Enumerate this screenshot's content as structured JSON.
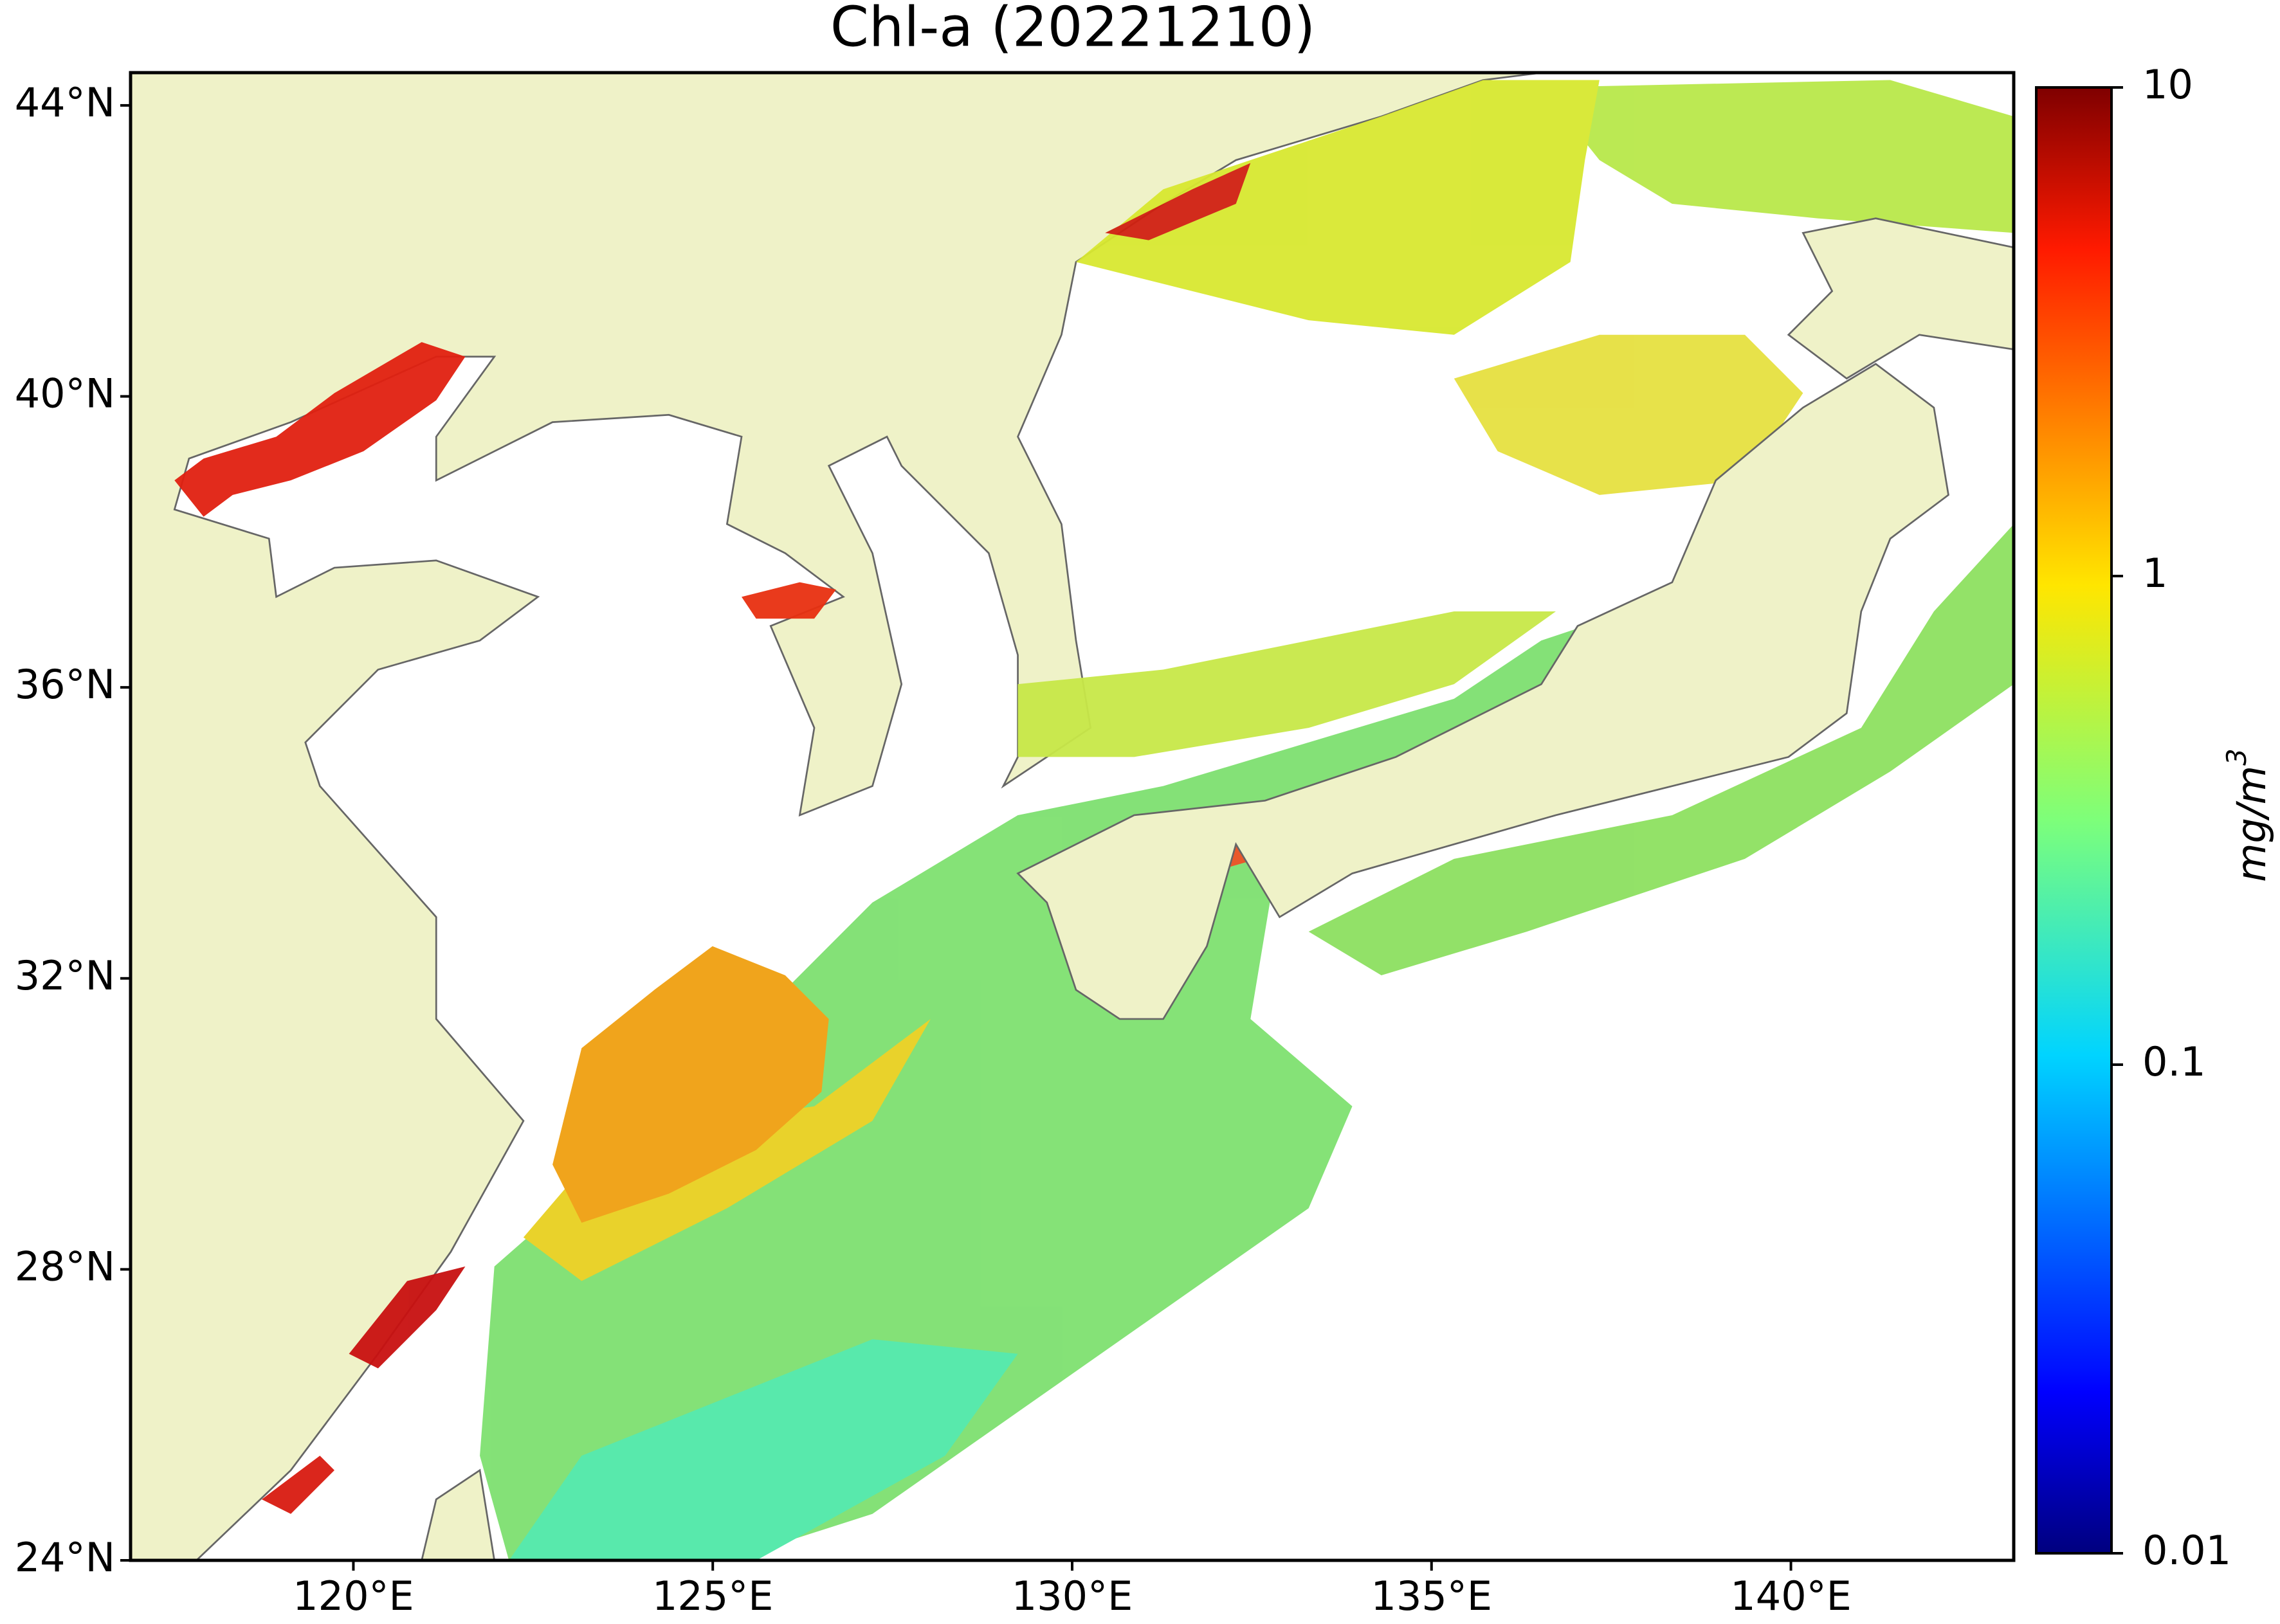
{
  "title": "Chl-a (20221210)",
  "map": {
    "xlim": [
      116.9,
      143.1
    ],
    "ylim": [
      24,
      44.45
    ],
    "xticks": [
      {
        "value": 120,
        "label": "120°E"
      },
      {
        "value": 125,
        "label": "125°E"
      },
      {
        "value": 130,
        "label": "130°E"
      },
      {
        "value": 135,
        "label": "135°E"
      },
      {
        "value": 140,
        "label": "140°E"
      }
    ],
    "yticks": [
      {
        "value": 24,
        "label": "24°N"
      },
      {
        "value": 28,
        "label": "28°N"
      },
      {
        "value": 32,
        "label": "32°N"
      },
      {
        "value": 36,
        "label": "36°N"
      },
      {
        "value": 40,
        "label": "40°N"
      },
      {
        "value": 44,
        "label": "44°N"
      }
    ]
  },
  "colorbar": {
    "label": "mg/m",
    "label_sup": "3",
    "log": true,
    "lim": [
      0.01,
      10
    ],
    "ticks": [
      0.01,
      0.1,
      1,
      10
    ]
  }
}
